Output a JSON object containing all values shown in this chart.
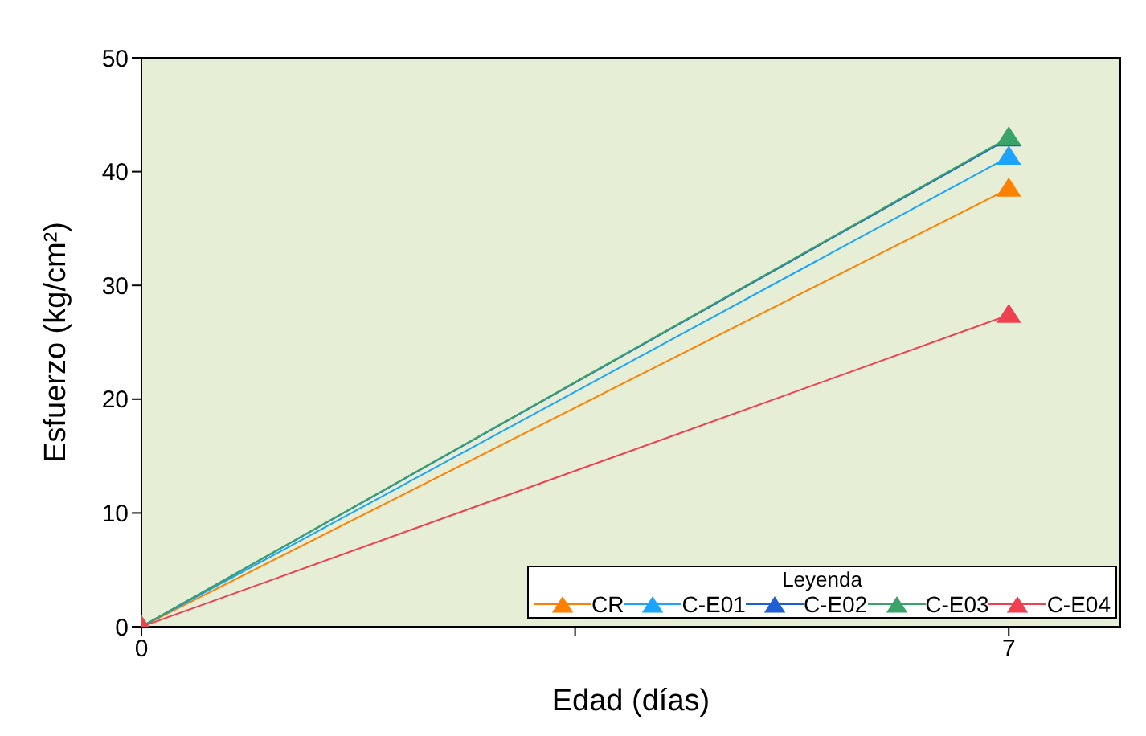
{
  "chart_data": {
    "type": "line",
    "xlabel": "Edad (días)",
    "ylabel": "Esfuerzo (kg/cm²)",
    "x": [
      0,
      7
    ],
    "xlim": [
      0,
      7.9
    ],
    "xticks": [
      0,
      {
        "value": 3.5,
        "label": null
      },
      7
    ],
    "ylim": [
      0,
      50
    ],
    "yticks": [
      0,
      10,
      20,
      30,
      40,
      50
    ],
    "marker": "triangle",
    "line_style": "solid",
    "legend": "bottom right",
    "legend_title": "Leyenda",
    "series": [
      {
        "name": "CR",
        "color": "#ff8000",
        "values": [
          0,
          38.5
        ]
      },
      {
        "name": "C-E01",
        "color": "#1aa3ff",
        "values": [
          0,
          41.3
        ]
      },
      {
        "name": "C-E02",
        "color": "#1f5fd6",
        "values": [
          0,
          42.9
        ]
      },
      {
        "name": "C-E03",
        "color": "#3aa36a",
        "values": [
          0,
          43.0
        ]
      },
      {
        "name": "C-E04",
        "color": "#f04050",
        "values": [
          0,
          27.4
        ]
      }
    ]
  }
}
